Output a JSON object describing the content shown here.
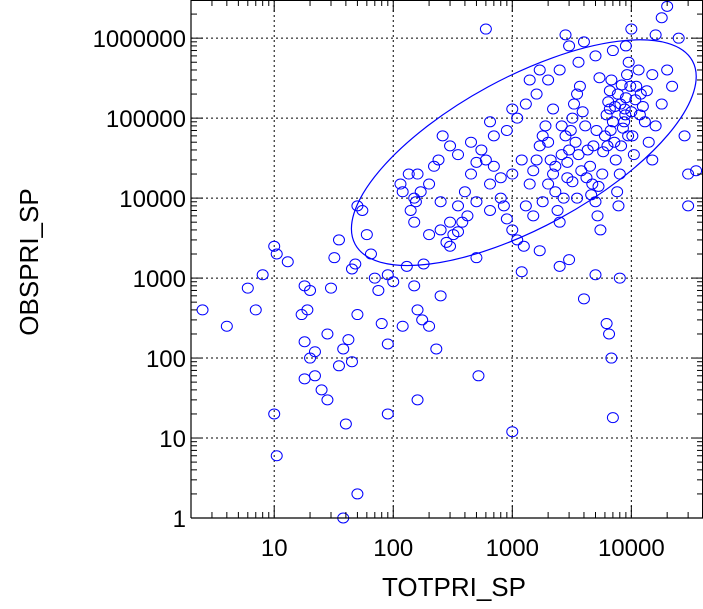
{
  "chart_data": {
    "type": "scatter",
    "title": "",
    "xlabel": "TOTPRI_SP",
    "ylabel": "OBSPRI_SP",
    "x_scale": "log",
    "y_scale": "log",
    "xlim": [
      2,
      40000
    ],
    "ylim": [
      1,
      3000000
    ],
    "x_tick_labels": [
      "10",
      "100",
      "1000",
      "10000"
    ],
    "x_ticks": [
      10,
      100,
      1000,
      10000
    ],
    "y_tick_labels": [
      "1",
      "10",
      "100",
      "1000",
      "10000",
      "100000",
      "1000000"
    ],
    "y_ticks": [
      1,
      10,
      100,
      1000,
      10000,
      100000,
      1000000
    ],
    "grid": true,
    "marker": "open ellipse",
    "color": "#0000ff",
    "confidence_ellipse": {
      "center_x": 1250,
      "center_y": 37000,
      "x_extent": [
        45,
        35000
      ],
      "y_extent": [
        100,
        1800000
      ]
    },
    "points": [
      [
        2.5,
        400
      ],
      [
        4,
        250
      ],
      [
        6,
        750
      ],
      [
        7,
        400
      ],
      [
        8,
        1100
      ],
      [
        10,
        2500
      ],
      [
        10.5,
        2000
      ],
      [
        13,
        1600
      ],
      [
        10,
        20
      ],
      [
        10.5,
        6
      ],
      [
        18,
        800
      ],
      [
        19,
        400
      ],
      [
        20,
        700
      ],
      [
        17,
        350
      ],
      [
        18,
        160
      ],
      [
        20,
        100
      ],
      [
        18,
        55
      ],
      [
        22,
        60
      ],
      [
        25,
        40
      ],
      [
        28,
        30
      ],
      [
        22,
        120
      ],
      [
        28,
        200
      ],
      [
        35,
        80
      ],
      [
        38,
        130
      ],
      [
        42,
        170
      ],
      [
        45,
        90
      ],
      [
        50,
        350
      ],
      [
        30,
        750
      ],
      [
        32,
        1800
      ],
      [
        35,
        3000
      ],
      [
        45,
        1300
      ],
      [
        48,
        1500
      ],
      [
        50,
        8000
      ],
      [
        55,
        7000
      ],
      [
        60,
        3500
      ],
      [
        65,
        2000
      ],
      [
        70,
        1000
      ],
      [
        75,
        700
      ],
      [
        90,
        1100
      ],
      [
        100,
        900
      ],
      [
        80,
        270
      ],
      [
        90,
        150
      ],
      [
        120,
        250
      ],
      [
        130,
        1400
      ],
      [
        150,
        800
      ],
      [
        160,
        400
      ],
      [
        175,
        300
      ],
      [
        200,
        250
      ],
      [
        230,
        130
      ],
      [
        250,
        600
      ],
      [
        40,
        15
      ],
      [
        50,
        2
      ],
      [
        38,
        1
      ],
      [
        90,
        20
      ],
      [
        160,
        30
      ],
      [
        520,
        60
      ],
      [
        1000,
        12
      ],
      [
        7000,
        18
      ],
      [
        4000,
        550
      ],
      [
        6200,
        270
      ],
      [
        6500,
        200
      ],
      [
        6800,
        100
      ],
      [
        8000,
        1000
      ],
      [
        5000,
        1100
      ],
      [
        3000,
        1700
      ],
      [
        1200,
        1200
      ],
      [
        1700,
        2200
      ],
      [
        2500,
        1400
      ],
      [
        500,
        1800
      ],
      [
        300,
        2500
      ],
      [
        350,
        3800
      ],
      [
        250,
        4000
      ],
      [
        200,
        3500
      ],
      [
        180,
        1500
      ],
      [
        150,
        5000
      ],
      [
        140,
        7000
      ],
      [
        120,
        12000
      ],
      [
        115,
        15000
      ],
      [
        135,
        20000
      ],
      [
        160,
        20000
      ],
      [
        150,
        10000
      ],
      [
        155,
        9000
      ],
      [
        170,
        12000
      ],
      [
        200,
        15000
      ],
      [
        250,
        9000
      ],
      [
        300,
        5000
      ],
      [
        350,
        8000
      ],
      [
        400,
        12000
      ],
      [
        450,
        20000
      ],
      [
        500,
        28000
      ],
      [
        600,
        30000
      ],
      [
        650,
        15000
      ],
      [
        700,
        25000
      ],
      [
        800,
        18000
      ],
      [
        850,
        8000
      ],
      [
        900,
        5500
      ],
      [
        1000,
        4000
      ],
      [
        1100,
        3000
      ],
      [
        1250,
        2500
      ],
      [
        1300,
        8000
      ],
      [
        1400,
        15000
      ],
      [
        1500,
        22000
      ],
      [
        1600,
        30000
      ],
      [
        1700,
        45000
      ],
      [
        1800,
        60000
      ],
      [
        1900,
        80000
      ],
      [
        2000,
        50000
      ],
      [
        2100,
        30000
      ],
      [
        2200,
        20000
      ],
      [
        2300,
        12000
      ],
      [
        2400,
        7000
      ],
      [
        2500,
        5000
      ],
      [
        2700,
        10000
      ],
      [
        2900,
        18000
      ],
      [
        3000,
        40000
      ],
      [
        3100,
        70000
      ],
      [
        3200,
        100000
      ],
      [
        3300,
        150000
      ],
      [
        3500,
        200000
      ],
      [
        3700,
        250000
      ],
      [
        3900,
        120000
      ],
      [
        4100,
        80000
      ],
      [
        4300,
        40000
      ],
      [
        4500,
        25000
      ],
      [
        4700,
        15000
      ],
      [
        5000,
        9000
      ],
      [
        5200,
        6000
      ],
      [
        5500,
        4000
      ],
      [
        5700,
        20000
      ],
      [
        6000,
        60000
      ],
      [
        6200,
        110000
      ],
      [
        6400,
        160000
      ],
      [
        6600,
        220000
      ],
      [
        6800,
        300000
      ],
      [
        7000,
        90000
      ],
      [
        7200,
        50000
      ],
      [
        7400,
        30000
      ],
      [
        7600,
        12000
      ],
      [
        7800,
        8000
      ],
      [
        8000,
        20000
      ],
      [
        8200,
        45000
      ],
      [
        8500,
        75000
      ],
      [
        8800,
        130000
      ],
      [
        9000,
        180000
      ],
      [
        9200,
        350000
      ],
      [
        9500,
        500000
      ],
      [
        9800,
        250000
      ],
      [
        10000,
        120000
      ],
      [
        10200,
        60000
      ],
      [
        10500,
        35000
      ],
      [
        11000,
        250000
      ],
      [
        11500,
        400000
      ],
      [
        12000,
        200000
      ],
      [
        12500,
        140000
      ],
      [
        13000,
        90000
      ],
      [
        14000,
        50000
      ],
      [
        15000,
        30000
      ],
      [
        16000,
        80000
      ],
      [
        18000,
        150000
      ],
      [
        20000,
        400000
      ],
      [
        22000,
        250000
      ],
      [
        25000,
        1000000
      ],
      [
        28000,
        60000
      ],
      [
        30000,
        20000
      ],
      [
        20000,
        2500000
      ],
      [
        18000,
        1800000
      ],
      [
        16000,
        1100000
      ],
      [
        10000,
        1300000
      ],
      [
        9000,
        800000
      ],
      [
        7000,
        700000
      ],
      [
        5000,
        600000
      ],
      [
        4000,
        900000
      ],
      [
        3000,
        800000
      ],
      [
        2500,
        400000
      ],
      [
        2000,
        300000
      ],
      [
        1600,
        200000
      ],
      [
        1300,
        150000
      ],
      [
        1100,
        100000
      ],
      [
        900,
        70000
      ],
      [
        700,
        60000
      ],
      [
        550,
        40000
      ],
      [
        450,
        50000
      ],
      [
        350,
        35000
      ],
      [
        300,
        45000
      ],
      [
        260,
        60000
      ],
      [
        240,
        30000
      ],
      [
        220,
        25000
      ],
      [
        650,
        90000
      ],
      [
        1000,
        130000
      ],
      [
        1400,
        300000
      ],
      [
        1700,
        400000
      ],
      [
        2200,
        130000
      ],
      [
        2600,
        80000
      ],
      [
        2800,
        60000
      ],
      [
        3400,
        50000
      ],
      [
        3600,
        35000
      ],
      [
        3800,
        22000
      ],
      [
        4200,
        18000
      ],
      [
        4600,
        11000
      ],
      [
        5300,
        14000
      ],
      [
        5800,
        38000
      ],
      [
        6300,
        45000
      ],
      [
        6700,
        70000
      ],
      [
        7300,
        140000
      ],
      [
        7700,
        200000
      ],
      [
        8300,
        260000
      ],
      [
        8700,
        90000
      ],
      [
        9400,
        60000
      ],
      [
        10800,
        170000
      ],
      [
        11800,
        110000
      ],
      [
        13500,
        220000
      ],
      [
        15000,
        350000
      ],
      [
        30000,
        8000
      ],
      [
        35000,
        22000
      ],
      [
        600,
        1300000
      ],
      [
        2800,
        1100000
      ],
      [
        3600,
        500000
      ],
      [
        5400,
        320000
      ],
      [
        6600,
        130000
      ],
      [
        8100,
        150000
      ],
      [
        8900,
        110000
      ],
      [
        1200,
        30000
      ],
      [
        1000,
        20000
      ],
      [
        800,
        10000
      ],
      [
        650,
        7000
      ],
      [
        500,
        9000
      ],
      [
        420,
        6000
      ],
      [
        380,
        5000
      ],
      [
        320,
        3500
      ],
      [
        280,
        2800
      ],
      [
        1500,
        6000
      ],
      [
        1800,
        9000
      ],
      [
        2000,
        15000
      ],
      [
        2300,
        25000
      ],
      [
        2600,
        35000
      ],
      [
        2900,
        28000
      ],
      [
        3200,
        16000
      ],
      [
        3500,
        10000
      ],
      [
        4800,
        45000
      ],
      [
        5100,
        70000
      ]
    ]
  }
}
